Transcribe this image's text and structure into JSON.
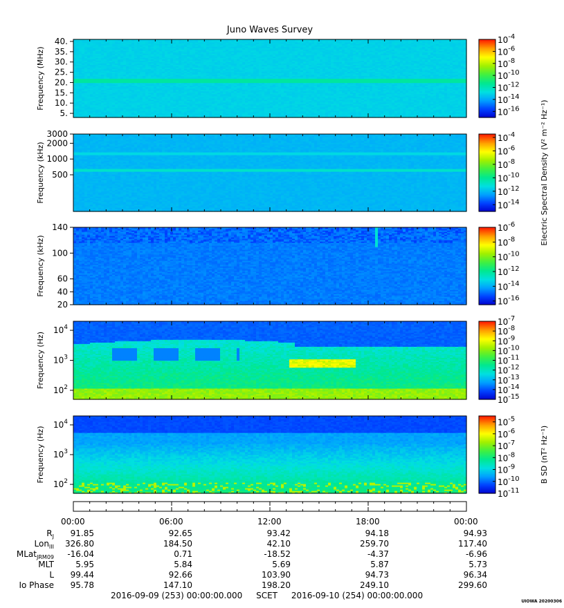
{
  "title": "Juno Waves Survey",
  "chart_data": [
    {
      "type": "heatmap",
      "panel": "HFR-high",
      "ylabel": "Frequency (MHz)",
      "yticks": [
        "40.",
        "35.",
        "30.",
        "25.",
        "20.",
        "15.",
        "10.",
        "5."
      ],
      "ylim": [
        3,
        41
      ],
      "yscale": "linear",
      "colorbar_exponents": [
        "-4",
        "-6",
        "-8",
        "-10",
        "-12",
        "-14",
        "-16"
      ],
      "colorbar_range_log": [
        -4,
        -17
      ],
      "features": [
        {
          "type": "band",
          "freq": 21,
          "level_log": -11.5,
          "label": ""
        }
      ],
      "background_level_log": -13
    },
    {
      "type": "heatmap",
      "panel": "HFR-low",
      "ylabel": "Frequency (kHz)",
      "yticks": [
        "3000",
        "2000",
        "1000",
        "500"
      ],
      "ylim": [
        100,
        3000
      ],
      "yscale": "log",
      "colorbar_exponents": [
        "-4",
        "-6",
        "-8",
        "-10",
        "-12",
        "-14"
      ],
      "colorbar_range_log": [
        -3.5,
        -15
      ],
      "background_level_log": -12,
      "features": [
        {
          "type": "band",
          "freq": 1300,
          "level_log": -11.3
        },
        {
          "type": "band",
          "freq": 620,
          "level_log": -10.8
        }
      ]
    },
    {
      "type": "heatmap",
      "panel": "LFR-high",
      "ylabel": "Frequency (kHz)",
      "yticks": [
        "140",
        "100",
        "60",
        "40",
        "20"
      ],
      "ylim": [
        20,
        140
      ],
      "yscale": "linear",
      "colorbar_exponents": [
        "-6",
        "-8",
        "-10",
        "-12",
        "-14",
        "-16"
      ],
      "colorbar_range_log": [
        -6,
        -16.5
      ],
      "background_level_log": -14.6
    },
    {
      "type": "heatmap",
      "panel": "LFR-E",
      "ylabel": "Frequency (Hz)",
      "yticks": [
        "10^4",
        "10^3",
        "10^2"
      ],
      "ylim": [
        50,
        20000
      ],
      "yscale": "log",
      "colorbar_exponents": [
        "-7",
        "-8",
        "-9",
        "-10",
        "-11",
        "-12",
        "-13",
        "-14",
        "-15"
      ],
      "colorbar_range_log": [
        -7,
        -15
      ]
    },
    {
      "type": "heatmap",
      "panel": "LFR-B",
      "ylabel": "Frequency (Hz)",
      "yticks": [
        "10^4",
        "10^3",
        "10^2"
      ],
      "ylim": [
        50,
        20000
      ],
      "yscale": "log",
      "colorbar_exponents": [
        "-5",
        "-6",
        "-7",
        "-8",
        "-9",
        "-10",
        "-11"
      ],
      "colorbar_range_log": [
        -4.5,
        -11
      ]
    }
  ],
  "colorbar_labels": {
    "electric": "Electric Spectral Density (V² m⁻² Hz⁻¹)",
    "magnetic": "B SD (nT² Hz⁻¹)"
  },
  "x_ticks": [
    "00:00",
    "06:00",
    "12:00",
    "18:00",
    "00:00"
  ],
  "ephemeris": [
    {
      "label": "RJ",
      "sub": "J",
      "base": "R",
      "values": [
        "91.85",
        "92.65",
        "93.42",
        "94.18",
        "94.93"
      ]
    },
    {
      "label": "LonIII",
      "base": "Lon",
      "sub": "III",
      "values": [
        "326.80",
        "184.50",
        "42.10",
        "259.70",
        "117.40"
      ]
    },
    {
      "label": "MLatJRM09",
      "base": "MLat",
      "sub": "JRM09",
      "values": [
        "-16.04",
        "0.71",
        "-18.52",
        "-4.37",
        "-6.96"
      ]
    },
    {
      "label": "MLT",
      "base": "MLT",
      "sub": "",
      "values": [
        "5.95",
        "5.84",
        "5.69",
        "5.87",
        "5.73"
      ]
    },
    {
      "label": "L",
      "base": "L",
      "sub": "",
      "values": [
        "99.44",
        "92.66",
        "103.90",
        "94.73",
        "96.34"
      ]
    },
    {
      "label": "Io Phase",
      "base": "Io Phase",
      "sub": "",
      "values": [
        "95.78",
        "147.10",
        "198.20",
        "249.10",
        "299.60"
      ]
    }
  ],
  "scet": {
    "start": "2016-09-09 (253) 00:00:00.000",
    "label": "SCET",
    "end": "2016-09-10 (254) 00:00:00.000"
  },
  "stamp": "UIOWA 20200306",
  "colors": {
    "scale": [
      "#0000cc",
      "#0040ff",
      "#00a0ff",
      "#00e0e0",
      "#00e890",
      "#40f040",
      "#a0f000",
      "#ffff00",
      "#ffa000",
      "#ff2000"
    ]
  }
}
